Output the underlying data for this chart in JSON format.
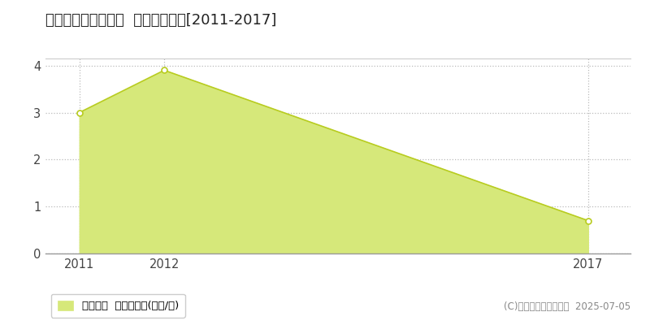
{
  "title": "勝田郡勝央町太平台  土地価格推移[2011-2017]",
  "years": [
    2011,
    2012,
    2017
  ],
  "values": [
    3.0,
    3.9,
    0.7
  ],
  "line_color": "#b8cc20",
  "fill_color": "#d6e87a",
  "marker_color": "#b8cc20",
  "bg_color": "#ffffff",
  "plot_bg_color": "#ffffff",
  "ylim": [
    0,
    4.15
  ],
  "xlim": [
    2010.6,
    2017.5
  ],
  "yticks": [
    0,
    1,
    2,
    3,
    4
  ],
  "xticks": [
    2011,
    2012,
    2017
  ],
  "legend_label": "土地価格  平均坪単価(万円/坪)",
  "copyright": "(C)土地価格ドットコム  2025-07-05",
  "title_fontsize": 13,
  "tick_fontsize": 10.5,
  "legend_fontsize": 9.5,
  "copyright_fontsize": 8.5,
  "grid_color": "#bbbbbb",
  "top_border_color": "#cccccc"
}
